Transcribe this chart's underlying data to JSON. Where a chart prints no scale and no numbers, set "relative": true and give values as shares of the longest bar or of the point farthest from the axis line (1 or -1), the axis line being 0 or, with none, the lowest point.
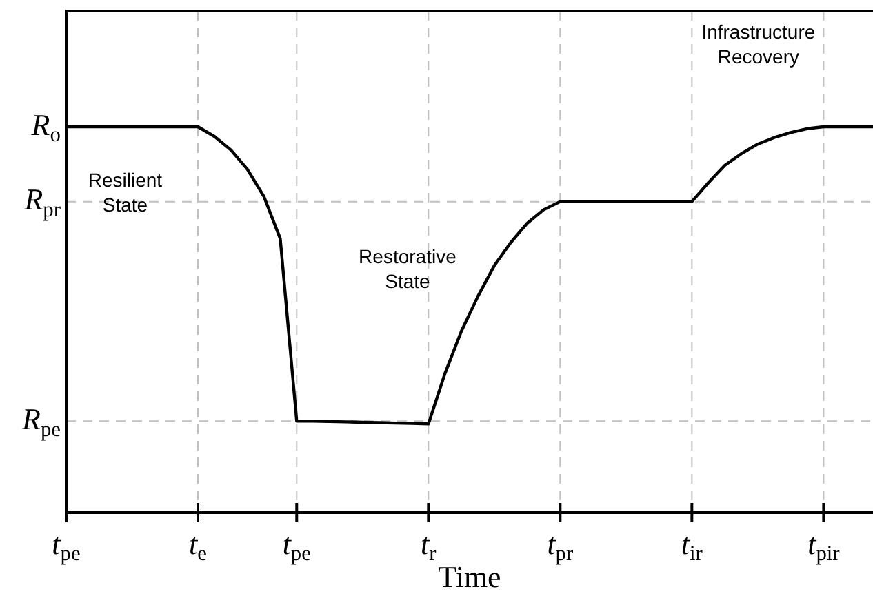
{
  "chart_data": {
    "type": "line",
    "relative": true,
    "xlabel": "Time",
    "categories": [
      "t$_{pe}$",
      null,
      null,
      null,
      null,
      null,
      null,
      null,
      "t$_{e}$",
      null,
      null,
      null,
      null,
      null,
      "t$_{pe}$",
      null,
      null,
      null,
      null,
      null,
      null,
      null,
      "t$_{r}$",
      null,
      null,
      null,
      null,
      null,
      null,
      null,
      "t$_{pr}$",
      null,
      null,
      null,
      null,
      null,
      null,
      null,
      "t$_{ir}$",
      null,
      null,
      null,
      null,
      null,
      null,
      null,
      "t$_{pir}$",
      null,
      null,
      null
    ],
    "series": [
      {
        "color": "#000000",
        "values": [
          1,
          1,
          1,
          1,
          1,
          1,
          1,
          1,
          1,
          0.975,
          0.94,
          0.89,
          0.82,
          0.71,
          0.237,
          0.237,
          0.236,
          0.235,
          0.234,
          0.233,
          0.232,
          0.231,
          0.23,
          0.36,
          0.47,
          0.56,
          0.64,
          0.7,
          0.75,
          0.785,
          0.806,
          0.806,
          0.806,
          0.806,
          0.806,
          0.806,
          0.806,
          0.806,
          0.806,
          0.855,
          0.9,
          0.93,
          0.955,
          0.972,
          0.985,
          0.995,
          1,
          1,
          1,
          1
        ]
      }
    ],
    "ref_lines": [
      {
        "axis": "y",
        "value": 0.806,
        "label": "R$_{pr}$",
        "line_style": "dashed",
        "color": "#c0c0c0"
      },
      {
        "axis": "y",
        "value": 0.237,
        "label": "R$_{pe}$",
        "line_style": "dashed",
        "color": "#c0c0c0"
      }
    ],
    "grid": "x",
    "annotations": [
      "R$_{o}$",
      "Resilient State",
      "Restorative State",
      "Infrastructure Recovery"
    ],
    "legend": false
  }
}
